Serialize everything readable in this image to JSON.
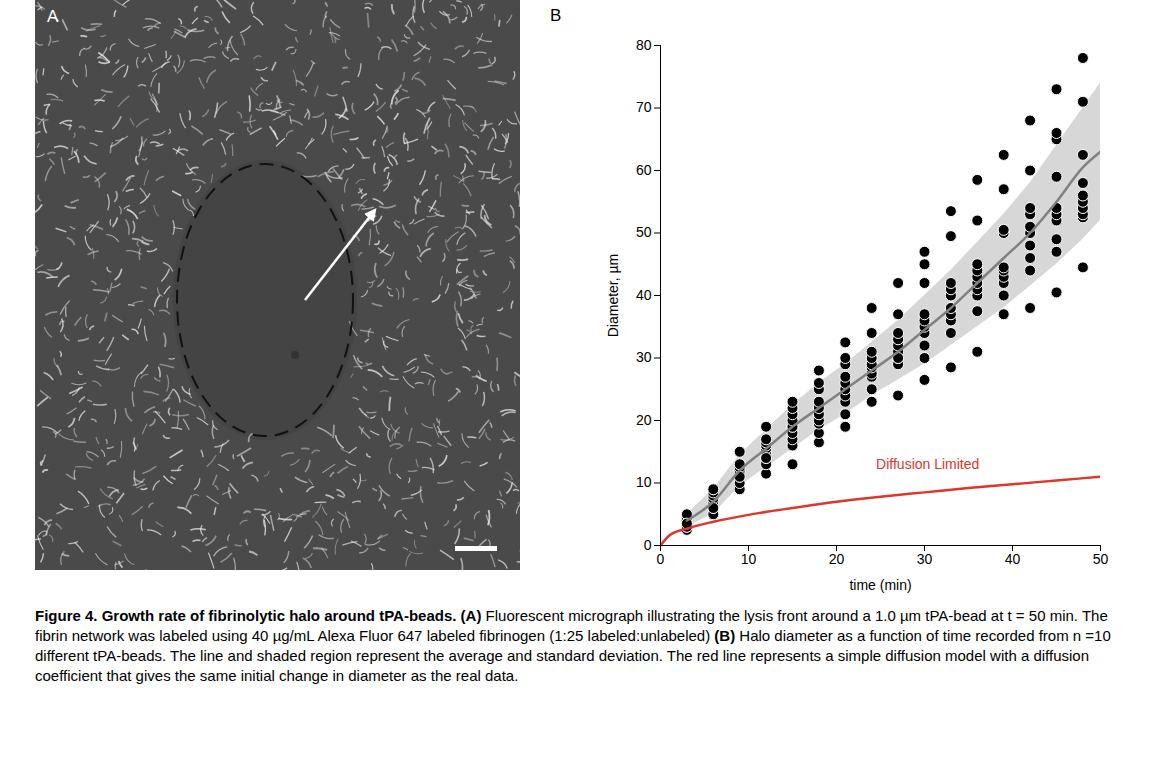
{
  "panels": [
    {
      "label": "A",
      "type": "image"
    }
  ],
  "chart_data": {
    "panel_label": "B",
    "type": "scatter",
    "x_label": "time (min)",
    "y_label": "Diameter, µm",
    "xlim": [
      0,
      50
    ],
    "xticks": [
      0,
      10,
      20,
      30,
      40,
      50
    ],
    "ylim": [
      0,
      80
    ],
    "yticks": [
      0,
      10,
      20,
      30,
      40,
      50,
      60,
      70,
      80
    ],
    "grid": false,
    "series": [
      {
        "type": "scatter",
        "color": "#000000",
        "marker": "circle",
        "x": [
          3,
          6,
          9,
          12,
          15,
          18,
          21,
          24,
          27,
          30,
          33,
          36,
          39,
          42,
          45,
          48
        ],
        "values": [
          [
            2.5,
            3,
            3.5,
            4,
            4,
            4.5,
            4.5,
            5,
            3,
            3.5
          ],
          [
            5,
            5,
            6,
            7,
            7.5,
            8,
            8.5,
            9,
            9,
            6
          ],
          [
            9,
            10,
            11,
            12,
            12,
            12.5,
            13,
            13,
            15,
            11
          ],
          [
            11.5,
            13,
            14,
            15,
            15.5,
            16,
            16.5,
            17,
            19,
            14
          ],
          [
            13,
            16,
            17,
            18,
            19,
            19,
            20,
            21,
            22,
            23
          ],
          [
            16.5,
            18,
            19.5,
            20,
            21,
            22,
            23,
            25,
            26,
            28
          ],
          [
            19,
            21,
            23,
            24,
            25,
            26,
            27,
            29,
            30,
            32.5
          ],
          [
            23,
            25,
            27,
            27.5,
            28.5,
            29,
            30,
            31,
            34,
            38
          ],
          [
            24,
            29,
            30,
            31,
            32,
            33,
            34,
            37,
            42,
            30
          ],
          [
            26.5,
            30,
            32,
            34,
            35,
            36,
            37,
            42,
            45,
            47
          ],
          [
            28.5,
            34,
            36,
            37,
            38,
            40,
            41,
            42,
            49.5,
            53.5
          ],
          [
            31,
            37.5,
            40,
            41,
            42,
            43,
            44,
            45,
            52,
            58.5
          ],
          [
            37,
            40,
            42,
            43,
            44,
            44.5,
            50,
            50.5,
            57,
            62.5
          ],
          [
            38,
            44,
            46,
            48,
            50,
            51,
            53,
            54,
            60,
            68
          ],
          [
            40.5,
            47,
            49,
            52,
            53,
            54,
            59,
            65,
            66,
            73
          ],
          [
            44.5,
            52.5,
            53,
            54,
            55,
            56,
            58,
            62.5,
            71,
            78
          ]
        ]
      },
      {
        "type": "line",
        "color": "#808080",
        "line_style": "solid",
        "x": [
          3,
          6,
          9,
          12,
          15,
          18,
          21,
          24,
          27,
          30,
          33,
          36,
          39,
          42,
          45,
          48,
          50
        ],
        "values": [
          4,
          7,
          12,
          15.5,
          19,
          22,
          25,
          28,
          31,
          34.5,
          38,
          42,
          46,
          50,
          55,
          60.5,
          63
        ],
        "sd_lower": [
          3,
          5,
          9.5,
          12.5,
          15.5,
          18.5,
          21,
          24,
          26.5,
          29,
          32,
          35,
          38,
          41.5,
          45,
          49,
          52
        ],
        "sd_upper": [
          5,
          9,
          14.5,
          18.5,
          22.5,
          26,
          29,
          32.5,
          36,
          40,
          44,
          48.5,
          53,
          58,
          64,
          70,
          74
        ],
        "sd_color": "#d0d0d0"
      },
      {
        "type": "line",
        "color": "#e0352b",
        "line_style": "solid",
        "x": [
          0,
          1,
          3,
          6,
          10,
          15,
          20,
          25,
          30,
          35,
          40,
          45,
          50
        ],
        "values": [
          0,
          1.6,
          2.7,
          3.8,
          4.9,
          6.0,
          7.0,
          7.8,
          8.5,
          9.2,
          9.8,
          10.4,
          11.0
        ]
      }
    ],
    "annotations": [
      {
        "text": "Diffusion Limited",
        "x": 24.5,
        "y": 13,
        "color": "#e0352b"
      }
    ]
  },
  "caption": {
    "title": "Figure 4. Growth rate of fibrinolytic halo around tPA-beads.",
    "parts": [
      {
        "label": "(A)",
        "text": "Fluorescent micrograph illustrating the lysis front around a 1.0 µm tPA-bead at t = 50 min. The fibrin network was labeled using 40 µg/mL Alexa Fluor 647 labeled fibrinogen (1:25 labeled:unlabeled)"
      },
      {
        "label": "(B)",
        "text": "Halo diameter as a function of time recorded from n =10 different tPA-beads. The line and shaded region represent the average and standard deviation. The red line represents a simple diffusion model with a diffusion coefficient that gives the same initial change in diameter as the real data."
      }
    ]
  }
}
